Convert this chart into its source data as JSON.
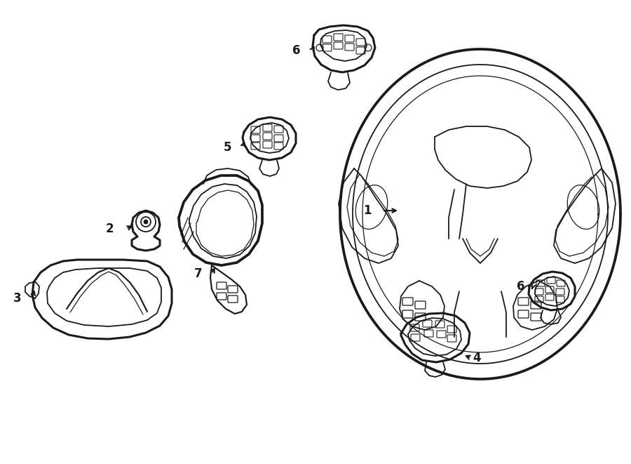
{
  "bg_color": "#ffffff",
  "line_color": "#1a1a1a",
  "lw": 1.3,
  "tlw": 2.2
}
